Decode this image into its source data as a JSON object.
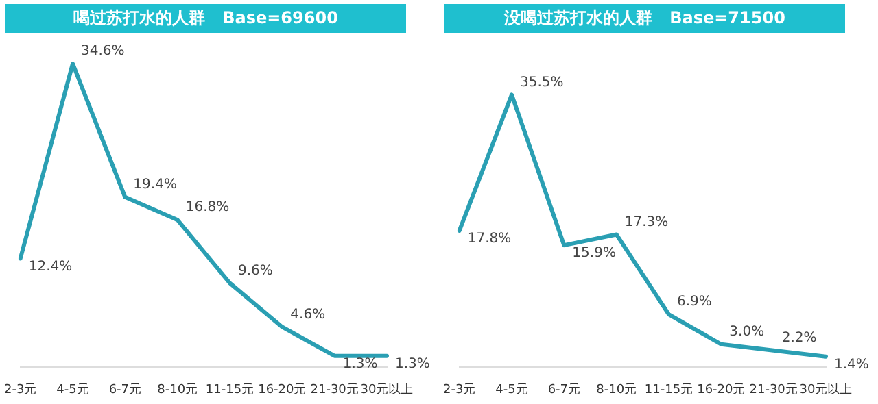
{
  "chart_data": [
    {
      "type": "line",
      "title": "喝过苏打水的人群   Base=69600",
      "categories": [
        "2-3元",
        "4-5元",
        "6-7元",
        "8-10元",
        "11-15元",
        "16-20元",
        "21-30元",
        "30元以上"
      ],
      "values": [
        12.4,
        34.6,
        19.4,
        16.8,
        9.6,
        4.6,
        1.3,
        1.3
      ],
      "value_labels": [
        "12.4%",
        "34.6%",
        "19.4%",
        "16.8%",
        "9.6%",
        "4.6%",
        "1.3%",
        "1.3%"
      ],
      "color": "#2a9fb3",
      "legend": false
    },
    {
      "type": "line",
      "title": "没喝过苏打水的人群   Base=71500",
      "categories": [
        "2-3元",
        "4-5元",
        "6-7元",
        "8-10元",
        "11-15元",
        "16-20元",
        "21-30元",
        "30元以上"
      ],
      "values": [
        17.8,
        35.5,
        15.9,
        17.3,
        6.9,
        3.0,
        2.2,
        1.4
      ],
      "value_labels": [
        "17.8%",
        "35.5%",
        "15.9%",
        "17.3%",
        "6.9%",
        "3.0%",
        "2.2%",
        "1.4%"
      ],
      "color": "#2a9fb3",
      "legend": false
    }
  ]
}
